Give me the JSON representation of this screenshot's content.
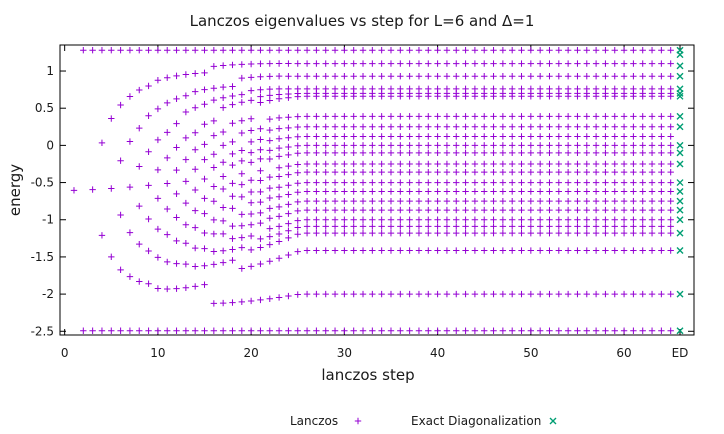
{
  "chart_data": {
    "type": "scatter",
    "title": "Lanczos eigenvalues vs step for L=6 and Δ=1",
    "xlabel": "lanczos step",
    "ylabel": "energy",
    "xlim": [
      -0.5,
      67.5
    ],
    "ylim": [
      -2.55,
      1.35
    ],
    "x_ticks": [
      0,
      10,
      20,
      30,
      40,
      50,
      60
    ],
    "x_extra_tick": {
      "value": 66,
      "label": "ED"
    },
    "y_ticks": [
      -2.5,
      -2,
      -1.5,
      -1,
      -0.5,
      0,
      0.5,
      1
    ],
    "legend_position": "bottom",
    "legend": [
      {
        "label": "Lanczos",
        "symbol": "+",
        "color": "#9400d3"
      },
      {
        "label": "Exact Diagonalization",
        "symbol": "×",
        "color": "#009e73"
      }
    ],
    "exact_diagonalization_energies": [
      -2.493,
      -2.0,
      -1.414,
      -1.18,
      -1.0,
      -0.87,
      -0.75,
      -0.62,
      -0.5,
      -0.25,
      -0.1,
      0.0,
      0.25,
      0.39,
      0.66,
      0.7,
      0.76,
      0.93,
      1.07,
      1.22,
      1.28
    ],
    "lanczos_steps": 65,
    "lanczos_converged_levels": [
      -2.493,
      -2.0,
      -1.414,
      -1.18,
      -1.09,
      -1.0,
      -0.87,
      -0.75,
      -0.62,
      -0.5,
      -0.36,
      -0.25,
      -0.1,
      0.0,
      0.12,
      0.25,
      0.39,
      0.66,
      0.7,
      0.76,
      0.93,
      1.1,
      1.28
    ]
  }
}
